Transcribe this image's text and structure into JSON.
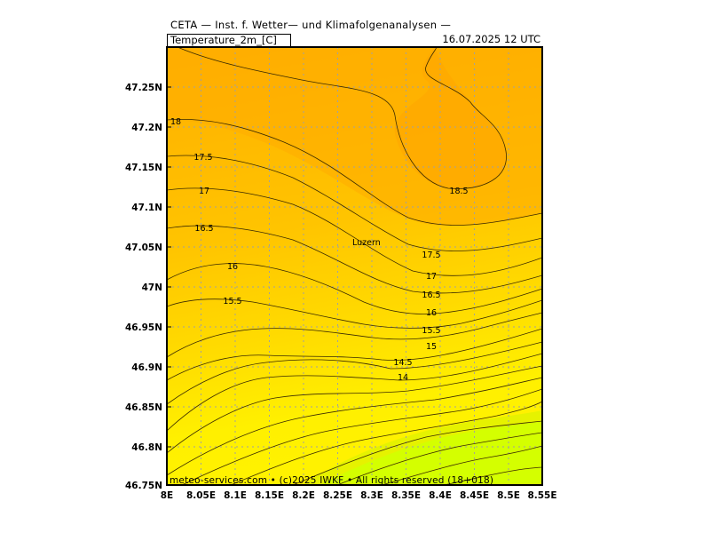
{
  "header": {
    "institution": "CETA — Inst. f. Wetter— und Klimafolgenanalysen —",
    "variable": "Temperature_2m_[C]",
    "valid_time": "16.07.2025  12 UTC"
  },
  "footer": "meteo-services.com • (c)2025 IWKF • All rights reserved (18+018)",
  "axes": {
    "y_ticks": [
      "47.25N",
      "47.2N",
      "47.15N",
      "47.1N",
      "47.05N",
      "47N",
      "46.95N",
      "46.9N",
      "46.85N",
      "46.8N",
      "46.75N"
    ],
    "x_ticks": [
      "8E",
      "8.05E",
      "8.1E",
      "8.15E",
      "8.2E",
      "8.25E",
      "8.3E",
      "8.35E",
      "8.4E",
      "8.45E",
      "8.5E",
      "8.55E"
    ]
  },
  "city": "Luzern",
  "contour_labels": [
    "18",
    "17.5",
    "17",
    "16.5",
    "16",
    "15.5",
    "18.5",
    "17.5",
    "17",
    "16.5",
    "16",
    "15.5",
    "15",
    "14.5",
    "14"
  ],
  "colors": {
    "warm": "#ffb000",
    "mid": "#ffd000",
    "cool": "#fff000",
    "cold": "#d4ff00",
    "grid": "#a0a0a0"
  }
}
